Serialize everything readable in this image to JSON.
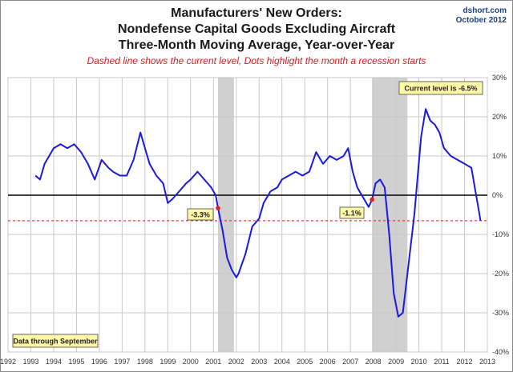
{
  "header": {
    "title_line1": "Manufacturers' New Orders:",
    "title_line2": "Nondefense Capital Goods Excluding Aircraft",
    "title_line3": "Three-Month Moving Average, Year-over-Year",
    "subtitle": "Dashed line shows the current level, Dots highlight the month a recession starts",
    "source_site": "dshort.com",
    "source_date": "October 2012"
  },
  "chart_data": {
    "type": "line",
    "title": "Manufacturers' New Orders: Nondefense Capital Goods Excluding Aircraft — Three-Month Moving Average, Year-over-Year",
    "xlabel": "",
    "ylabel": "",
    "xlim": [
      1992,
      2013
    ],
    "ylim": [
      -40,
      30
    ],
    "x_ticks": [
      "1992",
      "1993",
      "1994",
      "1995",
      "1996",
      "1997",
      "1998",
      "1999",
      "2000",
      "2001",
      "2002",
      "2003",
      "2004",
      "2005",
      "2006",
      "2007",
      "2008",
      "2009",
      "2010",
      "2011",
      "2012",
      "2013"
    ],
    "y_ticks": [
      "30%",
      "20%",
      "10%",
      "0%",
      "-10%",
      "-20%",
      "-30%",
      "-40%"
    ],
    "y_tick_values": [
      30,
      20,
      10,
      0,
      -10,
      -20,
      -30,
      -40
    ],
    "colors": {
      "line": "#1a1adb",
      "zero": "#000000",
      "current": "#d02020",
      "dot": "#e02020",
      "recession": "#c8c8c8"
    },
    "recessions": [
      {
        "start": 2001.2,
        "end": 2001.9
      },
      {
        "start": 2007.95,
        "end": 2009.5
      }
    ],
    "current_level": -6.5,
    "series": [
      {
        "name": "New Orders 3MMA YoY %",
        "x": [
          1993.2,
          1993.4,
          1993.6,
          1993.8,
          1994.0,
          1994.3,
          1994.6,
          1994.9,
          1995.2,
          1995.5,
          1995.8,
          1996.1,
          1996.4,
          1996.6,
          1996.9,
          1997.2,
          1997.5,
          1997.8,
          1997.9,
          1998.2,
          1998.5,
          1998.8,
          1999.0,
          1999.2,
          1999.5,
          1999.8,
          2000.0,
          2000.3,
          2000.6,
          2000.9,
          2001.1,
          2001.2,
          2001.4,
          2001.6,
          2001.8,
          2002.0,
          2002.1,
          2002.4,
          2002.7,
          2003.0,
          2003.2,
          2003.5,
          2003.8,
          2004.0,
          2004.3,
          2004.6,
          2004.9,
          2005.2,
          2005.5,
          2005.8,
          2006.1,
          2006.4,
          2006.7,
          2006.9,
          2007.1,
          2007.3,
          2007.6,
          2007.8,
          2007.95,
          2008.1,
          2008.3,
          2008.5,
          2008.7,
          2008.9,
          2009.1,
          2009.3,
          2009.5,
          2009.8,
          2010.1,
          2010.3,
          2010.5,
          2010.7,
          2010.9,
          2011.1,
          2011.4,
          2011.7,
          2012.0,
          2012.3,
          2012.45,
          2012.6,
          2012.7
        ],
        "values": [
          5,
          4,
          8,
          10,
          12,
          13,
          12,
          13,
          11,
          8,
          4,
          9,
          7,
          6,
          5,
          5,
          9,
          16,
          14,
          8,
          5,
          3,
          -2,
          -1,
          1,
          3,
          4,
          6,
          4,
          2,
          0,
          -3.3,
          -9,
          -16,
          -19,
          -21,
          -20,
          -15,
          -8,
          -6,
          -2,
          1,
          2,
          4,
          5,
          6,
          5,
          6,
          11,
          8,
          10,
          9,
          10,
          12,
          6,
          2,
          -1,
          -3,
          -1.1,
          3,
          4,
          2,
          -10,
          -25,
          -31,
          -30,
          -20,
          -5,
          15,
          22,
          19,
          18,
          16,
          12,
          10,
          9,
          8,
          7,
          2,
          -3,
          -6.5
        ]
      }
    ],
    "annotations": {
      "current_label": "Current level is -6.5%",
      "footnote": "Data through September",
      "dot_2001": {
        "x": 2001.2,
        "value": -3.3,
        "label": "-3.3%"
      },
      "dot_2008": {
        "x": 2007.95,
        "value": -1.1,
        "label": "-1.1%"
      }
    }
  }
}
